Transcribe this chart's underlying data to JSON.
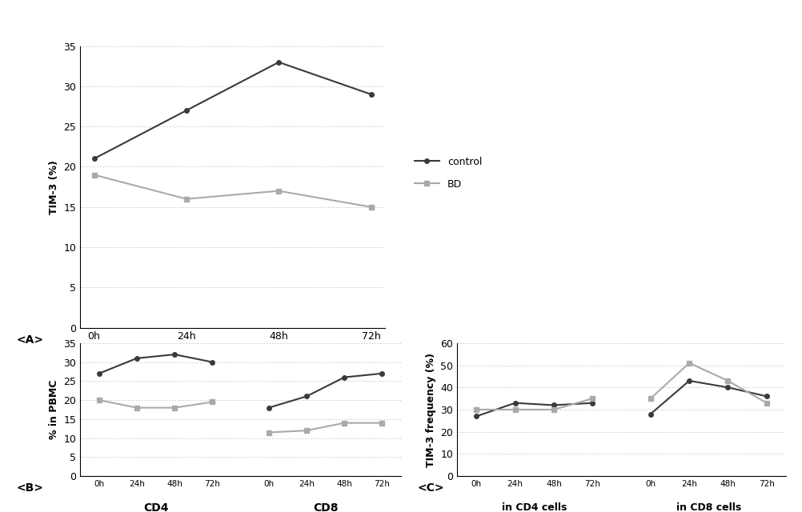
{
  "panel_A": {
    "ylabel": "TIM-3 (%)",
    "xticklabels": [
      "0h",
      "24h",
      "48h",
      "72h"
    ],
    "ylim": [
      0,
      35
    ],
    "yticks": [
      0,
      5,
      10,
      15,
      20,
      25,
      30,
      35
    ],
    "control": [
      21,
      27,
      33,
      29
    ],
    "bd": [
      19,
      16,
      17,
      15
    ],
    "label_A": "<A>"
  },
  "panel_B": {
    "ylabel": "% in PBMC",
    "ylim": [
      0,
      35
    ],
    "yticks": [
      0,
      5,
      10,
      15,
      20,
      25,
      30,
      35
    ],
    "cd4_control": [
      27,
      31,
      32,
      30
    ],
    "cd4_bd": [
      20,
      18,
      18,
      19.5
    ],
    "cd8_control": [
      18,
      21,
      26,
      27
    ],
    "cd8_bd": [
      11.5,
      12,
      14,
      14
    ],
    "xlabel_cd4": "CD4",
    "xlabel_cd8": "CD8",
    "label_B": "<B>"
  },
  "panel_C": {
    "ylabel": "TIM-3 frequency (%)",
    "ylim": [
      0,
      60
    ],
    "yticks": [
      0,
      10,
      20,
      30,
      40,
      50,
      60
    ],
    "cd4_control": [
      27,
      33,
      32,
      33
    ],
    "cd4_bd": [
      30,
      30,
      30,
      35
    ],
    "cd8_control": [
      28,
      43,
      40,
      36
    ],
    "cd8_bd": [
      35,
      51,
      43,
      33
    ],
    "xlabel_cd4": "in CD4 cells",
    "xlabel_cd8": "in CD8 cells",
    "label_C": "<C>"
  },
  "xticklabels_time": [
    "0h",
    "24h",
    "48h",
    "72h"
  ],
  "legend": {
    "control_label": "control",
    "bd_label": "BD"
  },
  "colors": {
    "control": "#3a3a3a",
    "bd": "#aaaaaa",
    "grid": "#aaaaaa",
    "background": "#ffffff"
  }
}
